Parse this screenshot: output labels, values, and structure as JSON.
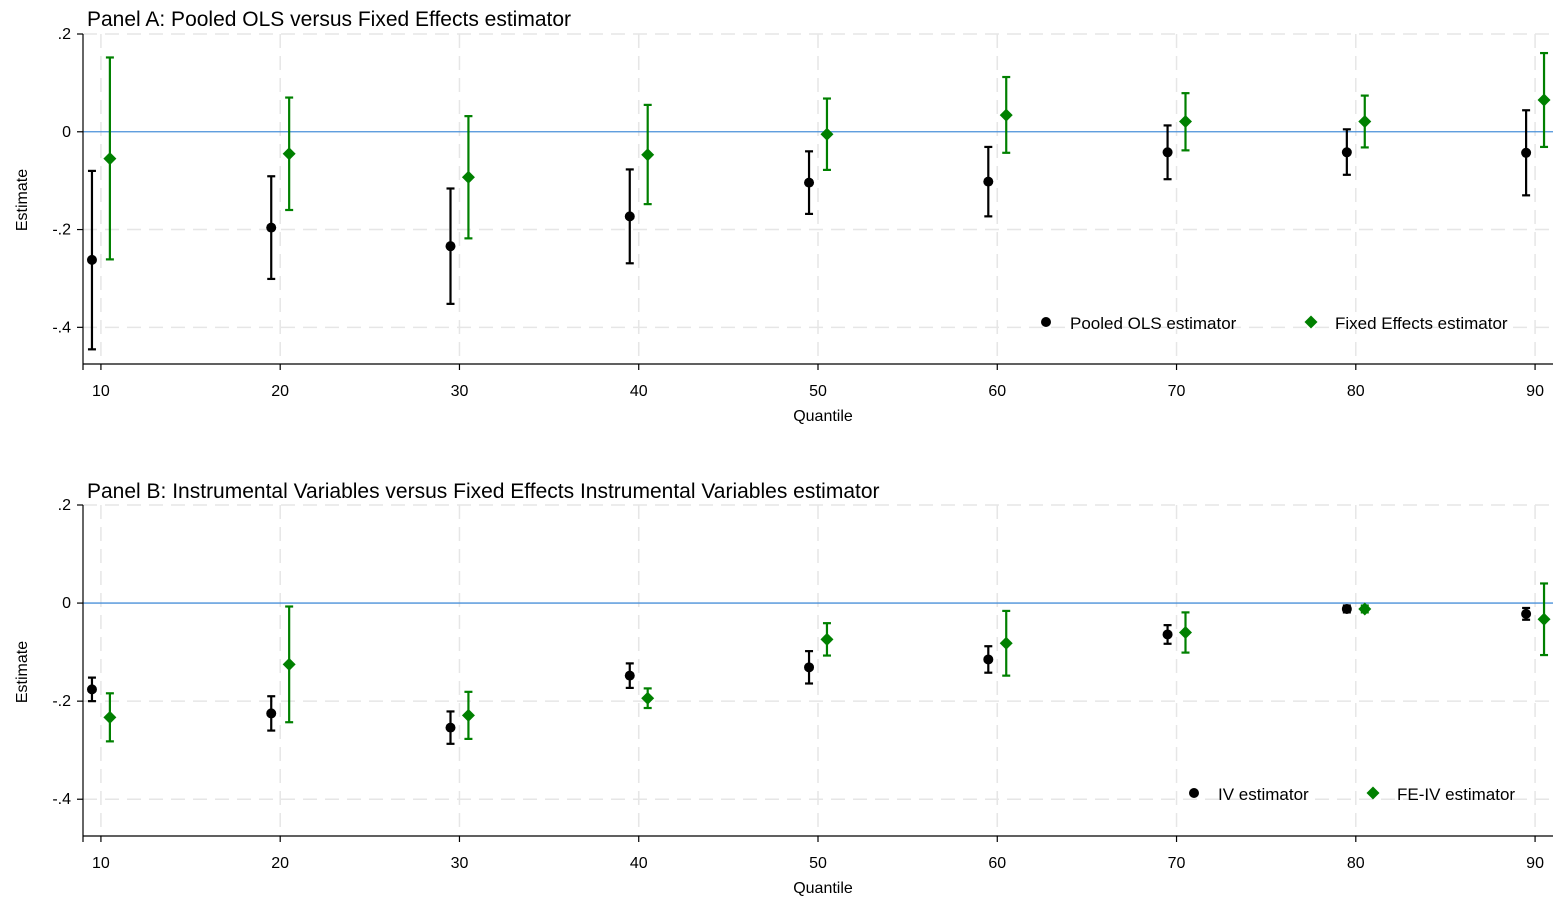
{
  "colors": {
    "series1": "#000000",
    "series2": "#008000",
    "zero_line": "#4a90d9",
    "grid": "#e6e6e6",
    "axis": "#000000"
  },
  "chart_data": [
    {
      "type": "scatter",
      "title": "Panel A: Pooled OLS versus Fixed Effects estimator",
      "xlabel": "Quantile",
      "ylabel": "Estimate",
      "xlim": [
        9,
        91
      ],
      "ylim": [
        -0.475,
        0.2
      ],
      "xticks": [
        10,
        20,
        30,
        40,
        50,
        60,
        70,
        80,
        90
      ],
      "xtick_labels": [
        "10",
        "20",
        "30",
        "40",
        "50",
        "60",
        "70",
        "80",
        "90"
      ],
      "yticks": [
        0.2,
        0,
        -0.2,
        -0.4
      ],
      "ytick_labels": [
        ".2",
        "0",
        "-.2",
        "-.4"
      ],
      "grid": true,
      "reference_line_y": 0,
      "legend_position": "bottom-right",
      "series": [
        {
          "name": "Pooled OLS estimator",
          "marker": "circle",
          "offset": -0.5,
          "x": [
            10,
            20,
            30,
            40,
            50,
            60,
            70,
            80,
            90
          ],
          "y": [
            -0.262,
            -0.196,
            -0.234,
            -0.173,
            -0.104,
            -0.102,
            -0.042,
            -0.042,
            -0.043
          ],
          "lower": [
            -0.445,
            -0.301,
            -0.352,
            -0.269,
            -0.168,
            -0.173,
            -0.097,
            -0.088,
            -0.13
          ],
          "upper": [
            -0.08,
            -0.091,
            -0.116,
            -0.077,
            -0.04,
            -0.031,
            0.013,
            0.005,
            0.044
          ]
        },
        {
          "name": "Fixed Effects estimator",
          "marker": "diamond",
          "offset": 0.5,
          "x": [
            10,
            20,
            30,
            40,
            50,
            60,
            70,
            80,
            90
          ],
          "y": [
            -0.055,
            -0.045,
            -0.093,
            -0.047,
            -0.005,
            0.034,
            0.021,
            0.021,
            0.065
          ],
          "lower": [
            -0.261,
            -0.16,
            -0.218,
            -0.148,
            -0.078,
            -0.043,
            -0.038,
            -0.032,
            -0.031
          ],
          "upper": [
            0.152,
            0.07,
            0.032,
            0.055,
            0.068,
            0.112,
            0.079,
            0.074,
            0.161
          ]
        }
      ]
    },
    {
      "type": "scatter",
      "title": "Panel B: Instrumental Variables versus Fixed Effects Instrumental Variables estimator",
      "xlabel": "Quantile",
      "ylabel": "Estimate",
      "xlim": [
        9,
        91
      ],
      "ylim": [
        -0.475,
        0.2
      ],
      "xticks": [
        10,
        20,
        30,
        40,
        50,
        60,
        70,
        80,
        90
      ],
      "xtick_labels": [
        "10",
        "20",
        "30",
        "40",
        "50",
        "60",
        "70",
        "80",
        "90"
      ],
      "yticks": [
        0.2,
        0,
        -0.2,
        -0.4
      ],
      "ytick_labels": [
        ".2",
        "0",
        "-.2",
        "-.4"
      ],
      "grid": true,
      "reference_line_y": 0,
      "legend_position": "bottom-right",
      "series": [
        {
          "name": "IV estimator",
          "marker": "circle",
          "offset": -0.5,
          "x": [
            10,
            20,
            30,
            40,
            50,
            60,
            70,
            80,
            90
          ],
          "y": [
            -0.176,
            -0.225,
            -0.254,
            -0.148,
            -0.131,
            -0.115,
            -0.064,
            -0.012,
            -0.022
          ],
          "lower": [
            -0.2,
            -0.26,
            -0.287,
            -0.173,
            -0.164,
            -0.142,
            -0.083,
            -0.019,
            -0.034
          ],
          "upper": [
            -0.152,
            -0.19,
            -0.221,
            -0.123,
            -0.098,
            -0.088,
            -0.045,
            -0.005,
            -0.01
          ]
        },
        {
          "name": "FE-IV estimator",
          "marker": "diamond",
          "offset": 0.5,
          "x": [
            10,
            20,
            30,
            40,
            50,
            60,
            70,
            80,
            90
          ],
          "y": [
            -0.233,
            -0.125,
            -0.229,
            -0.194,
            -0.074,
            -0.082,
            -0.06,
            -0.012,
            -0.033
          ],
          "lower": [
            -0.282,
            -0.243,
            -0.277,
            -0.214,
            -0.107,
            -0.148,
            -0.101,
            -0.019,
            -0.106
          ],
          "upper": [
            -0.184,
            -0.007,
            -0.181,
            -0.174,
            -0.041,
            -0.016,
            -0.019,
            -0.005,
            0.04
          ]
        }
      ]
    }
  ]
}
